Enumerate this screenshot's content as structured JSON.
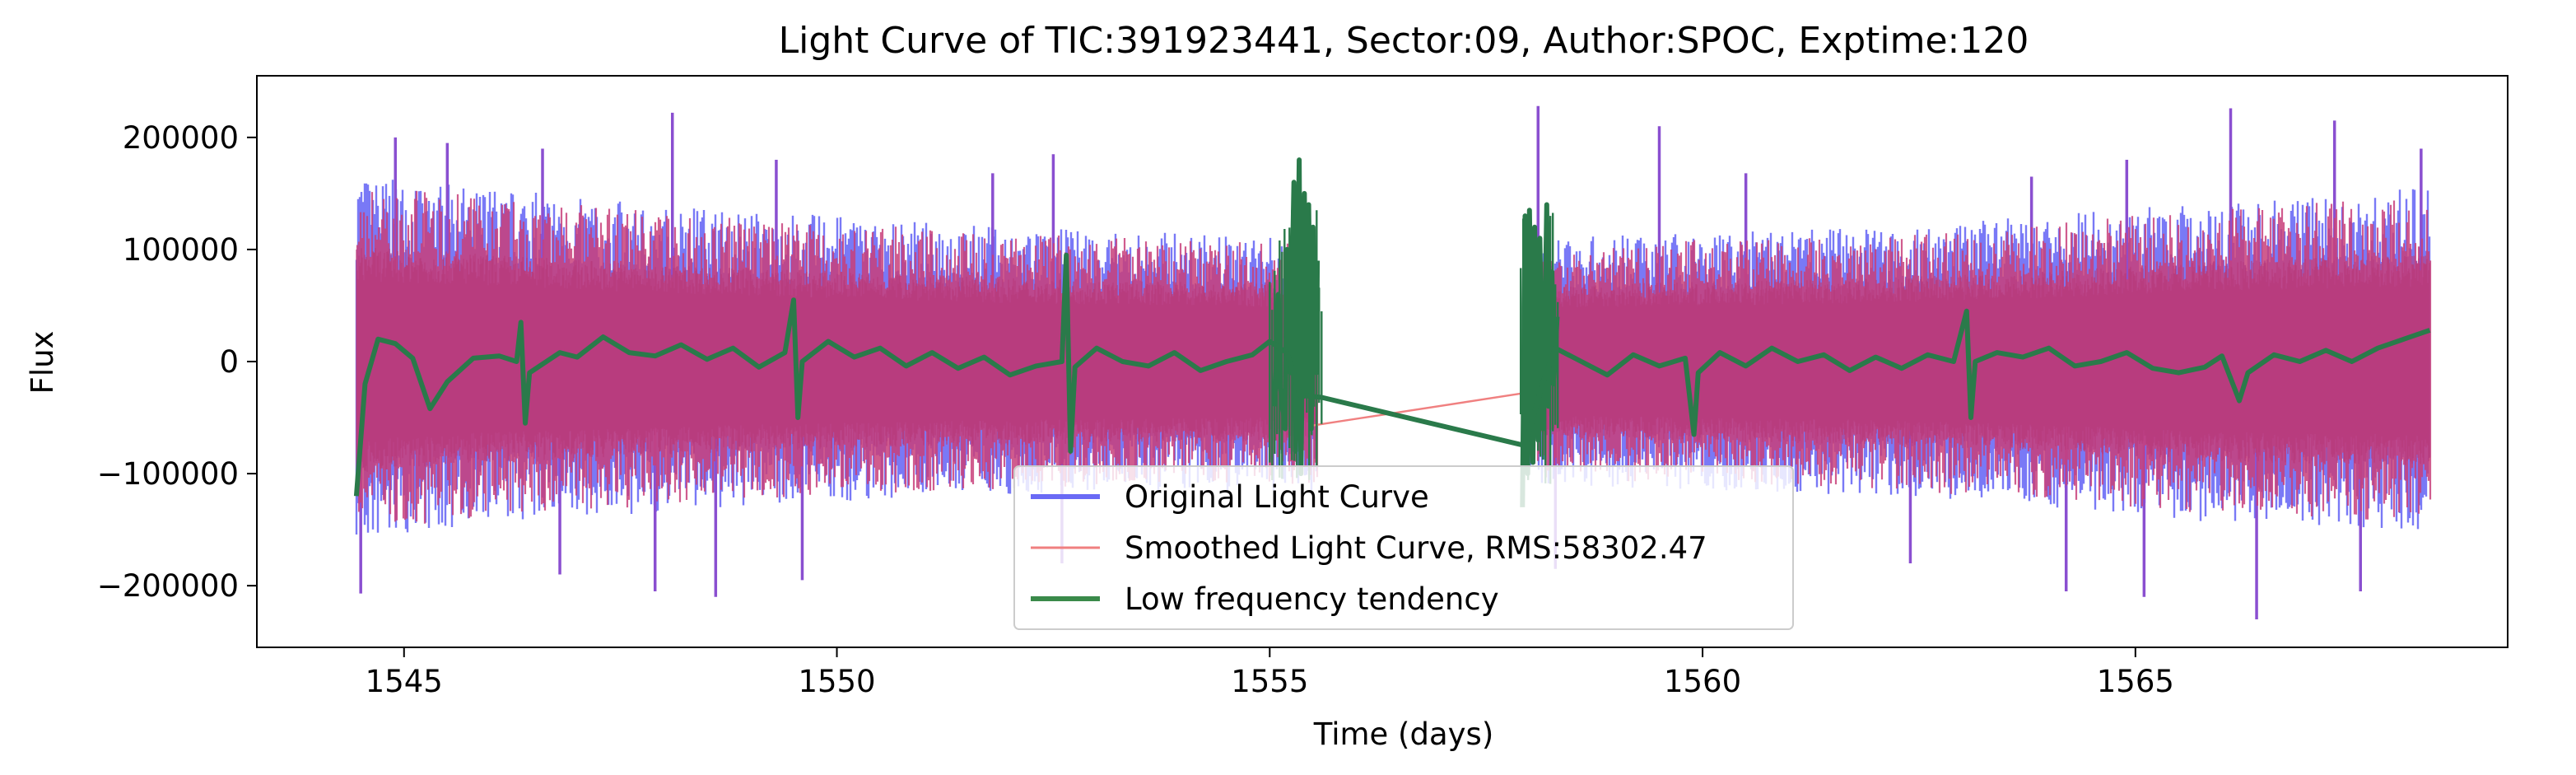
{
  "chart_data": {
    "type": "line",
    "title": "Light Curve of TIC:391923441, Sector:09, Author:SPOC, Exptime:120",
    "xlabel": "Time (days)",
    "ylabel": "Flux",
    "xlim": [
      1543.3,
      1569.3
    ],
    "ylim": [
      -255000,
      255000
    ],
    "x_ticks": [
      {
        "value": 1545,
        "label": "1545"
      },
      {
        "value": 1550,
        "label": "1550"
      },
      {
        "value": 1555,
        "label": "1555"
      },
      {
        "value": 1560,
        "label": "1560"
      },
      {
        "value": 1565,
        "label": "1565"
      }
    ],
    "y_ticks": [
      {
        "value": 200000,
        "label": "200000"
      },
      {
        "value": 100000,
        "label": "100000"
      },
      {
        "value": 0,
        "label": "0"
      },
      {
        "value": -100000,
        "label": "−100000"
      },
      {
        "value": -200000,
        "label": "−200000"
      }
    ],
    "grid": false,
    "legend_position": "lower-center",
    "data_gap": [
      1555.6,
      1557.9
    ],
    "series": [
      {
        "name": "Original Light Curve",
        "color": "#6a6af5",
        "style": "noise-band",
        "segments": [
          {
            "x_range": [
              1544.45,
              1555.55
            ],
            "envelope_x": [
              1544.5,
              1546,
              1548,
              1550,
              1552,
              1554,
              1555.5
            ],
            "envelope_upper": [
              165000,
              155000,
              140000,
              130000,
              120000,
              115000,
              110000
            ],
            "envelope_lower": [
              -160000,
              -145000,
              -135000,
              -125000,
              -120000,
              -115000,
              -115000
            ],
            "peaks": [
              [
                1544.9,
                200000
              ],
              [
                1545.5,
                195000
              ],
              [
                1546.6,
                190000
              ],
              [
                1548.1,
                222000
              ],
              [
                1549.3,
                180000
              ],
              [
                1551.8,
                168000
              ],
              [
                1552.5,
                185000
              ],
              [
                1544.5,
                -207000
              ],
              [
                1546.8,
                -190000
              ],
              [
                1547.9,
                -205000
              ],
              [
                1548.6,
                -210000
              ],
              [
                1549.6,
                -195000
              ],
              [
                1552.6,
                -180000
              ]
            ]
          },
          {
            "x_range": [
              1557.95,
              1568.4
            ],
            "envelope_x": [
              1558,
              1560,
              1562,
              1564,
              1566,
              1568.4
            ],
            "envelope_upper": [
              110000,
              115000,
              120000,
              130000,
              145000,
              155000
            ],
            "envelope_lower": [
              -110000,
              -115000,
              -120000,
              -130000,
              -145000,
              -150000
            ],
            "peaks": [
              [
                1558.1,
                228000
              ],
              [
                1559.5,
                210000
              ],
              [
                1560.5,
                168000
              ],
              [
                1563.8,
                165000
              ],
              [
                1564.9,
                180000
              ],
              [
                1566.1,
                226000
              ],
              [
                1567.3,
                215000
              ],
              [
                1568.3,
                190000
              ],
              [
                1558.3,
                -185000
              ],
              [
                1562.4,
                -180000
              ],
              [
                1564.2,
                -205000
              ],
              [
                1565.1,
                -210000
              ],
              [
                1566.4,
                -230000
              ],
              [
                1567.6,
                -205000
              ]
            ]
          }
        ]
      },
      {
        "name": "Smoothed Light Curve, RMS:58302.47",
        "color": "#f08080",
        "style": "noise-band",
        "gap_line": [
          [
            1555.5,
            -57000
          ],
          [
            1557.95,
            -28000
          ]
        ]
      },
      {
        "name": "Low frequency tendency",
        "color": "#2a7a4a",
        "style": "line",
        "points": [
          [
            1544.45,
            -120000
          ],
          [
            1544.55,
            -20000
          ],
          [
            1544.7,
            20000
          ],
          [
            1544.9,
            16000
          ],
          [
            1545.1,
            3000
          ],
          [
            1545.3,
            -42000
          ],
          [
            1545.5,
            -18000
          ],
          [
            1545.8,
            3000
          ],
          [
            1546.1,
            5000
          ],
          [
            1546.3,
            0
          ],
          [
            1546.35,
            35000
          ],
          [
            1546.4,
            -55000
          ],
          [
            1546.45,
            -10000
          ],
          [
            1546.8,
            8000
          ],
          [
            1547.0,
            4000
          ],
          [
            1547.3,
            22000
          ],
          [
            1547.6,
            8000
          ],
          [
            1547.9,
            5000
          ],
          [
            1548.2,
            15000
          ],
          [
            1548.5,
            2000
          ],
          [
            1548.8,
            12000
          ],
          [
            1549.1,
            -5000
          ],
          [
            1549.4,
            8000
          ],
          [
            1549.5,
            55000
          ],
          [
            1549.55,
            -50000
          ],
          [
            1549.6,
            0
          ],
          [
            1549.9,
            18000
          ],
          [
            1550.2,
            4000
          ],
          [
            1550.5,
            12000
          ],
          [
            1550.8,
            -4000
          ],
          [
            1551.1,
            8000
          ],
          [
            1551.4,
            -6000
          ],
          [
            1551.7,
            4000
          ],
          [
            1552.0,
            -12000
          ],
          [
            1552.3,
            -4000
          ],
          [
            1552.6,
            0
          ],
          [
            1552.65,
            95000
          ],
          [
            1552.7,
            -80000
          ],
          [
            1552.75,
            -5000
          ],
          [
            1553.0,
            12000
          ],
          [
            1553.3,
            0
          ],
          [
            1553.6,
            -4000
          ],
          [
            1553.9,
            8000
          ],
          [
            1554.2,
            -8000
          ],
          [
            1554.5,
            0
          ],
          [
            1554.8,
            6000
          ],
          [
            1555.0,
            18000
          ],
          [
            1555.2,
            8000
          ],
          [
            1555.35,
            -30000
          ],
          [
            1555.6,
            -32000
          ],
          [
            1557.95,
            -75000
          ],
          [
            1558.15,
            -20000
          ],
          [
            1558.3,
            12000
          ],
          [
            1558.6,
            0
          ],
          [
            1558.9,
            -12000
          ],
          [
            1559.2,
            6000
          ],
          [
            1559.5,
            -4000
          ],
          [
            1559.8,
            3000
          ],
          [
            1559.9,
            -65000
          ],
          [
            1559.95,
            -10000
          ],
          [
            1560.2,
            8000
          ],
          [
            1560.5,
            -4000
          ],
          [
            1560.8,
            12000
          ],
          [
            1561.1,
            0
          ],
          [
            1561.4,
            6000
          ],
          [
            1561.7,
            -8000
          ],
          [
            1562.0,
            4000
          ],
          [
            1562.3,
            -6000
          ],
          [
            1562.6,
            6000
          ],
          [
            1562.9,
            0
          ],
          [
            1563.05,
            45000
          ],
          [
            1563.1,
            -50000
          ],
          [
            1563.15,
            0
          ],
          [
            1563.4,
            8000
          ],
          [
            1563.7,
            4000
          ],
          [
            1564.0,
            12000
          ],
          [
            1564.3,
            -4000
          ],
          [
            1564.6,
            0
          ],
          [
            1564.9,
            8000
          ],
          [
            1565.2,
            -6000
          ],
          [
            1565.5,
            -10000
          ],
          [
            1565.8,
            -5000
          ],
          [
            1566.0,
            5000
          ],
          [
            1566.2,
            -35000
          ],
          [
            1566.3,
            -10000
          ],
          [
            1566.6,
            6000
          ],
          [
            1566.9,
            0
          ],
          [
            1567.2,
            10000
          ],
          [
            1567.5,
            0
          ],
          [
            1567.8,
            12000
          ],
          [
            1568.1,
            20000
          ],
          [
            1568.4,
            28000
          ]
        ],
        "bursts": [
          {
            "x_range": [
              1555.0,
              1555.6
            ],
            "lows": [
              1555.06,
              1555.12,
              1555.18,
              1555.24,
              1555.3,
              1555.36,
              1555.42,
              1555.48,
              1555.54
            ],
            "low_values": [
              -40000,
              -20000,
              -60000,
              -10000,
              -80000,
              -100000,
              -30000,
              -60000,
              -10000
            ],
            "highs": [
              1555.1,
              1555.2,
              1555.28,
              1555.34,
              1555.4,
              1555.45,
              1555.5,
              1555.55
            ],
            "high_values": [
              60000,
              100000,
              160000,
              180000,
              150000,
              140000,
              120000,
              90000
            ]
          },
          {
            "x_range": [
              1557.9,
              1558.35
            ],
            "lows": [
              1557.92,
              1557.98,
              1558.04,
              1558.1,
              1558.16,
              1558.22,
              1558.28
            ],
            "low_values": [
              -130000,
              -100000,
              -90000,
              -70000,
              -60000,
              -40000,
              -20000
            ],
            "highs": [
              1557.95,
              1558.0,
              1558.06,
              1558.12,
              1558.2,
              1558.26,
              1558.32
            ],
            "high_values": [
              130000,
              135000,
              120000,
              110000,
              140000,
              80000,
              40000
            ]
          }
        ]
      }
    ]
  }
}
